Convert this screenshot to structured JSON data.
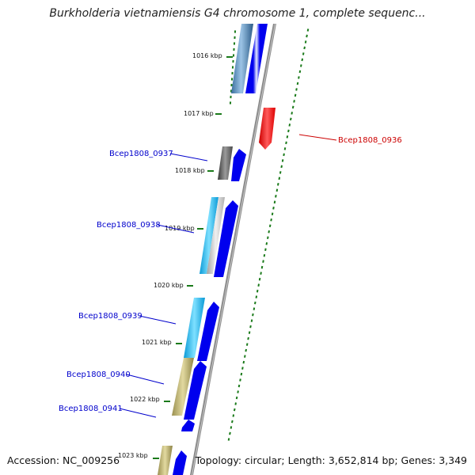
{
  "title": "Burkholderia vietnamiensis G4 chromosome 1, complete sequenc...",
  "footer": {
    "accession": "Accession: NC_009256",
    "summary": "Topology: circular; Length: 3,652,814 bp; Genes: 3,349"
  },
  "kbp_labels": [
    "1016 kbp",
    "1017 kbp",
    "1018 kbp",
    "1019 kbp",
    "1020 kbp",
    "1021 kbp",
    "1022 kbp",
    "1023 kbp"
  ],
  "gene_labels": {
    "g0936": "Bcep1808_0936",
    "g0937": "Bcep1808_0937",
    "g0938": "Bcep1808_0938",
    "g0939": "Bcep1808_0939",
    "g0940": "Bcep1808_0940",
    "g0941": "Bcep1808_0941"
  },
  "colors": {
    "forward_gene": "#0000ee",
    "reverse_gene": "#ff1a1a",
    "label_blue": "#0000cc",
    "label_red": "#cc0000",
    "tick_green": "#1a7a1a",
    "backbone": "#8c8c8c"
  }
}
